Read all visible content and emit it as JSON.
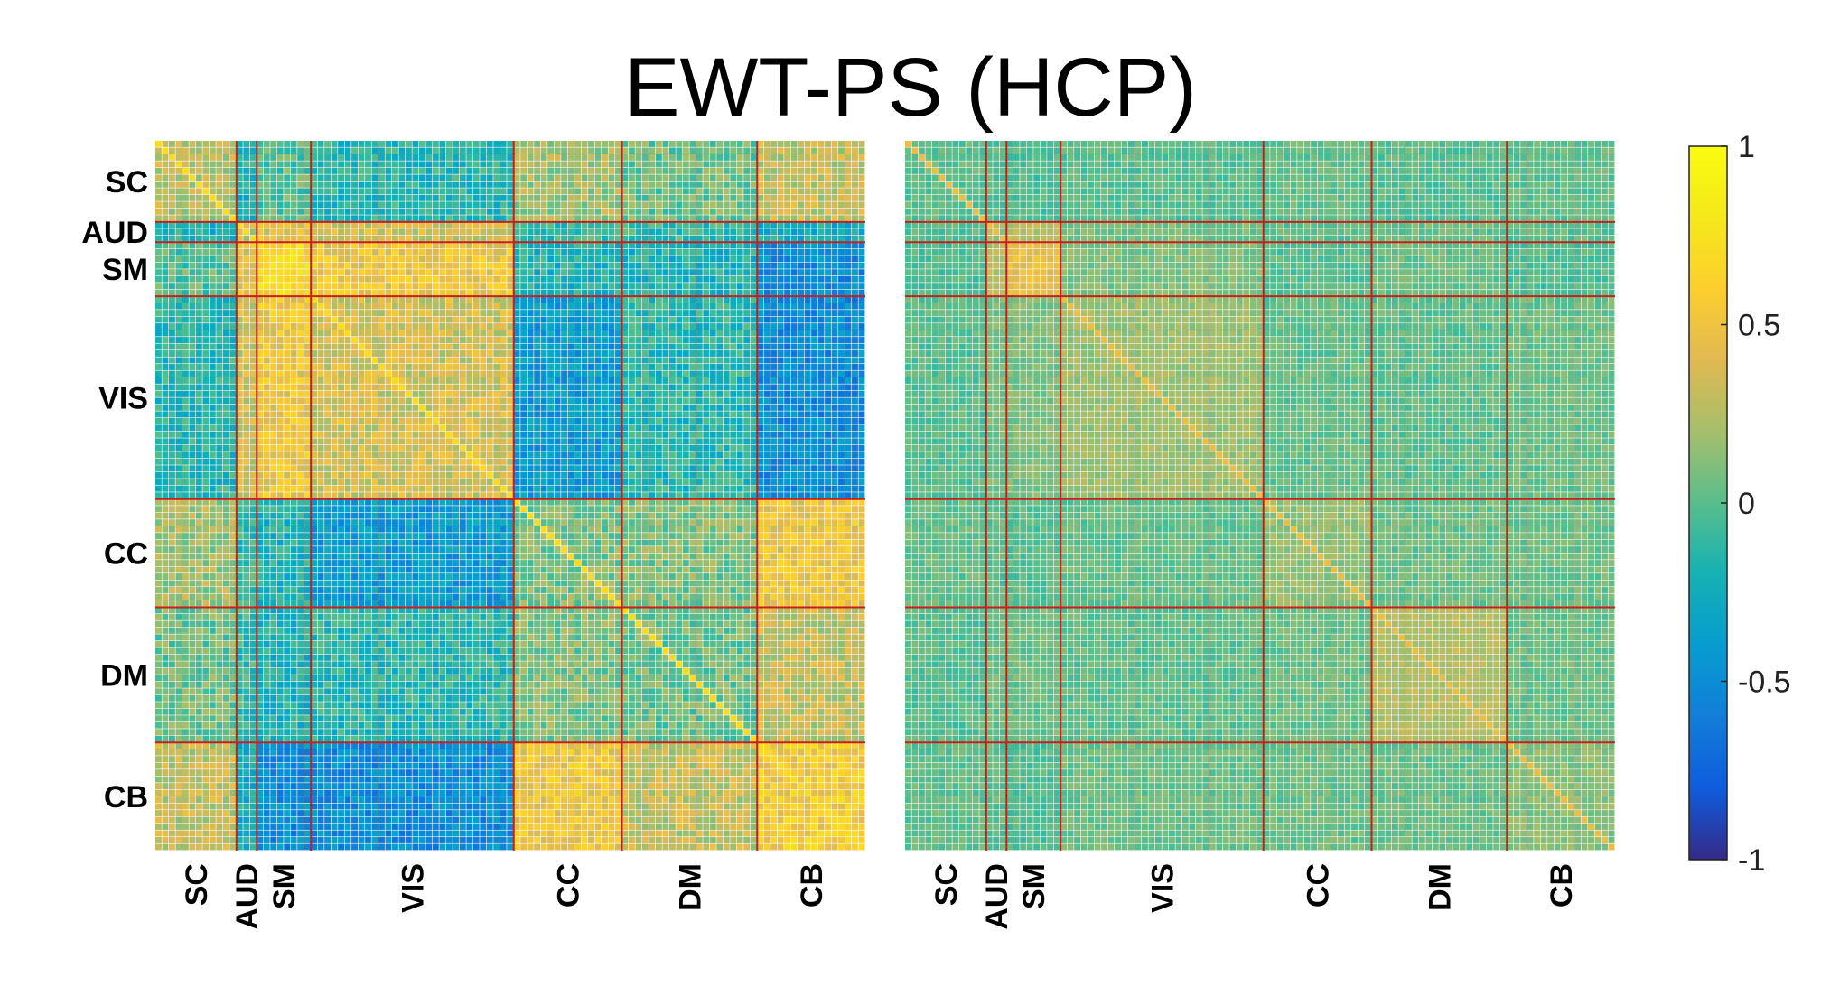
{
  "title": "EWT-PS (HCP)",
  "chart_data": {
    "type": "heatmap",
    "title": "EWT-PS (HCP)",
    "n_nodes": 105,
    "networks": [
      {
        "label": "SC",
        "size": 12
      },
      {
        "label": "AUD",
        "size": 3
      },
      {
        "label": "SM",
        "size": 8
      },
      {
        "label": "VIS",
        "size": 30
      },
      {
        "label": "CC",
        "size": 16
      },
      {
        "label": "DM",
        "size": 20
      },
      {
        "label": "CB",
        "size": 16
      }
    ],
    "panels": [
      {
        "name": "left",
        "block_means": [
          [
            0.25,
            -0.2,
            0.0,
            -0.15,
            0.2,
            0.05,
            0.3
          ],
          [
            -0.2,
            0.3,
            0.4,
            0.35,
            -0.1,
            -0.1,
            -0.25
          ],
          [
            0.0,
            0.4,
            0.65,
            0.5,
            -0.2,
            -0.2,
            -0.5
          ],
          [
            -0.15,
            0.35,
            0.5,
            0.35,
            -0.4,
            -0.15,
            -0.5
          ],
          [
            0.2,
            -0.1,
            -0.2,
            -0.4,
            0.1,
            0.1,
            0.5
          ],
          [
            0.05,
            -0.1,
            -0.2,
            -0.15,
            0.1,
            0.05,
            0.3
          ],
          [
            0.3,
            -0.25,
            -0.5,
            -0.5,
            0.5,
            0.3,
            0.55
          ]
        ]
      },
      {
        "name": "right",
        "block_means": [
          [
            0.02,
            0.0,
            -0.02,
            0.0,
            0.03,
            0.0,
            0.02
          ],
          [
            0.0,
            0.2,
            0.25,
            0.08,
            0.02,
            0.05,
            0.02
          ],
          [
            -0.02,
            0.25,
            0.45,
            0.1,
            0.0,
            0.05,
            -0.02
          ],
          [
            0.0,
            0.08,
            0.1,
            0.18,
            0.03,
            0.02,
            0.05
          ],
          [
            0.03,
            0.02,
            0.0,
            0.03,
            0.15,
            0.05,
            0.05
          ],
          [
            0.0,
            0.05,
            0.05,
            0.02,
            0.05,
            0.25,
            0.05
          ],
          [
            0.02,
            0.02,
            -0.02,
            0.05,
            0.05,
            0.05,
            0.12
          ]
        ]
      }
    ],
    "colorbar": {
      "colormap": "parula",
      "range": [
        -1,
        1
      ],
      "ticks": [
        1,
        0.5,
        0,
        -0.5,
        -1
      ],
      "tick_labels": [
        "1",
        "0.5",
        "0",
        "-0.5",
        "-1"
      ]
    },
    "separator_color": "#c81e1e",
    "gridline_color": "#ffffff"
  }
}
